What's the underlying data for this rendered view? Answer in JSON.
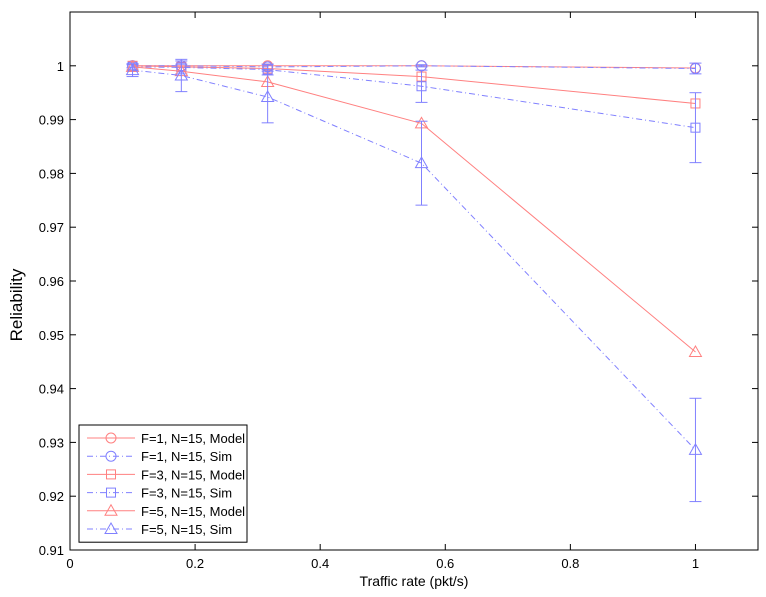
{
  "chart_data": {
    "type": "line",
    "xlabel": "Traffic rate (pkt/s)",
    "ylabel": "Reliability",
    "xlim": [
      0,
      1.1
    ],
    "ylim": [
      0.91,
      1.01
    ],
    "xticks": [
      0,
      0.2,
      0.4,
      0.6,
      0.8,
      1
    ],
    "xtick_labels": [
      "0",
      "0.2",
      "0.4",
      "0.6",
      "0.8",
      "1"
    ],
    "yticks": [
      0.91,
      0.92,
      0.93,
      0.94,
      0.95,
      0.96,
      0.97,
      0.98,
      0.99,
      1
    ],
    "ytick_labels": [
      "0.91",
      "0.92",
      "0.93",
      "0.94",
      "0.95",
      "0.96",
      "0.97",
      "0.98",
      "0.99",
      "1"
    ],
    "grid": false,
    "legend_position": "bottom-left",
    "x": [
      0.1,
      0.178,
      0.316,
      0.562,
      1.0
    ],
    "series": [
      {
        "name": "F=1, N=15, Model",
        "color": "#ff8080",
        "dash": "solid",
        "marker": "circle",
        "values": [
          1.0,
          1.0,
          1.0,
          1.0,
          0.9996
        ]
      },
      {
        "name": "F=1, N=15, Sim",
        "color": "#8080ff",
        "dash": "dashdot",
        "marker": "circle",
        "values": [
          1.0,
          1.0,
          0.9998,
          1.0,
          0.9995
        ],
        "errors": [
          0.0003,
          0.0003,
          0.0005,
          0.0002,
          0.001
        ]
      },
      {
        "name": "F=3, N=15, Model",
        "color": "#ff8080",
        "dash": "solid",
        "marker": "square",
        "values": [
          1.0,
          0.9998,
          0.9995,
          0.998,
          0.993
        ]
      },
      {
        "name": "F=3, N=15, Sim",
        "color": "#8080ff",
        "dash": "dashdot",
        "marker": "square",
        "values": [
          0.9998,
          0.9997,
          0.9993,
          0.9962,
          0.9885
        ],
        "errors": [
          0.0004,
          0.0012,
          0.001,
          0.003,
          0.0065
        ]
      },
      {
        "name": "F=5, N=15, Model",
        "color": "#ff8080",
        "dash": "solid",
        "marker": "triangle",
        "values": [
          0.9998,
          0.999,
          0.997,
          0.9893,
          0.9468
        ]
      },
      {
        "name": "F=5, N=15, Sim",
        "color": "#8080ff",
        "dash": "dashdot",
        "marker": "triangle",
        "values": [
          0.9992,
          0.9982,
          0.9942,
          0.9819,
          0.9286
        ],
        "errors": [
          0.0012,
          0.003,
          0.0048,
          0.0078,
          0.0096
        ]
      }
    ]
  }
}
